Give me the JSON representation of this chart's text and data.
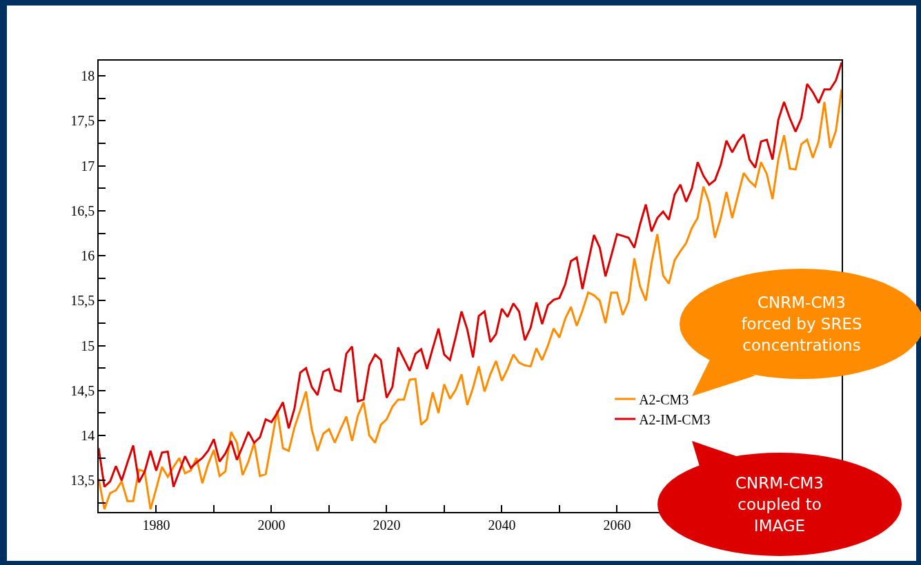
{
  "chart_data": {
    "type": "line",
    "x": [
      1970,
      1971,
      1972,
      1973,
      1974,
      1975,
      1976,
      1977,
      1978,
      1979,
      1980,
      1981,
      1982,
      1983,
      1984,
      1985,
      1986,
      1987,
      1988,
      1989,
      1990,
      1991,
      1992,
      1993,
      1994,
      1995,
      1996,
      1997,
      1998,
      1999,
      2000,
      2001,
      2002,
      2003,
      2004,
      2005,
      2006,
      2007,
      2008,
      2009,
      2010,
      2011,
      2012,
      2013,
      2014,
      2015,
      2016,
      2017,
      2018,
      2019,
      2020,
      2021,
      2022,
      2023,
      2024,
      2025,
      2026,
      2027,
      2028,
      2029,
      2030,
      2031,
      2032,
      2033,
      2034,
      2035,
      2036,
      2037,
      2038,
      2039,
      2040,
      2041,
      2042,
      2043,
      2044,
      2045,
      2046,
      2047,
      2048,
      2049,
      2050,
      2051,
      2052,
      2053,
      2054,
      2055,
      2056,
      2057,
      2058,
      2059,
      2060,
      2061,
      2062,
      2063,
      2064,
      2065,
      2066,
      2067,
      2068,
      2069,
      2070,
      2071,
      2072,
      2073,
      2074,
      2075,
      2076,
      2077,
      2078,
      2079,
      2080,
      2081,
      2082,
      2083,
      2084,
      2085,
      2086,
      2087,
      2088,
      2089,
      2090,
      2091,
      2092,
      2093,
      2094,
      2095,
      2096,
      2097,
      2098,
      2099
    ],
    "series": [
      {
        "name": "A2-CM3",
        "color": "#ff8c00",
        "values": [
          13.52,
          13.18,
          13.36,
          13.39,
          13.49,
          13.27,
          13.27,
          13.62,
          13.6,
          13.18,
          13.41,
          13.65,
          13.54,
          13.65,
          13.75,
          13.58,
          13.61,
          13.75,
          13.47,
          13.68,
          13.84,
          13.55,
          13.6,
          14.04,
          13.92,
          13.56,
          13.71,
          13.92,
          13.55,
          13.57,
          13.92,
          14.28,
          13.86,
          13.83,
          14.09,
          14.28,
          14.49,
          14.07,
          13.83,
          14.02,
          14.07,
          13.92,
          14.07,
          14.21,
          13.94,
          14.22,
          14.37,
          14.0,
          13.92,
          14.12,
          14.18,
          14.32,
          14.4,
          14.4,
          14.62,
          14.63,
          14.12,
          14.18,
          14.48,
          14.25,
          14.57,
          14.41,
          14.51,
          14.68,
          14.34,
          14.53,
          14.77,
          14.49,
          14.68,
          14.83,
          14.61,
          14.74,
          14.9,
          14.81,
          14.78,
          14.77,
          14.97,
          14.84,
          15.0,
          15.19,
          15.09,
          15.3,
          15.43,
          15.22,
          15.39,
          15.59,
          15.56,
          15.5,
          15.25,
          15.59,
          15.59,
          15.34,
          15.49,
          15.97,
          15.66,
          15.5,
          15.92,
          16.24,
          15.78,
          15.69,
          15.95,
          16.05,
          16.14,
          16.31,
          16.42,
          16.77,
          16.59,
          16.2,
          16.42,
          16.71,
          16.42,
          16.67,
          16.92,
          16.83,
          16.77,
          17.04,
          16.91,
          16.63,
          17.07,
          17.34,
          16.97,
          16.96,
          17.24,
          17.29,
          17.09,
          17.27,
          17.71,
          17.2,
          17.39,
          17.85
        ]
      },
      {
        "name": "A2-IM-CM3",
        "color": "#dd0000",
        "values": [
          13.86,
          13.43,
          13.49,
          13.66,
          13.5,
          13.7,
          13.89,
          13.48,
          13.6,
          13.83,
          13.61,
          13.81,
          13.82,
          13.43,
          13.6,
          13.77,
          13.64,
          13.7,
          13.75,
          13.83,
          13.96,
          13.71,
          13.8,
          13.94,
          13.73,
          13.88,
          14.04,
          13.92,
          13.98,
          14.18,
          14.15,
          14.25,
          14.37,
          14.08,
          14.3,
          14.7,
          14.75,
          14.54,
          14.45,
          14.71,
          14.74,
          14.51,
          14.49,
          14.91,
          14.99,
          14.38,
          14.4,
          14.78,
          14.9,
          14.84,
          14.42,
          14.54,
          14.98,
          14.85,
          14.72,
          14.91,
          14.96,
          14.74,
          14.97,
          15.19,
          14.9,
          14.84,
          15.1,
          15.38,
          15.18,
          14.87,
          15.33,
          15.38,
          15.04,
          15.13,
          15.41,
          15.32,
          15.47,
          15.38,
          15.06,
          15.2,
          15.48,
          15.24,
          15.45,
          15.51,
          15.53,
          15.68,
          15.94,
          15.98,
          15.63,
          15.93,
          16.23,
          16.09,
          15.77,
          16.0,
          16.24,
          16.22,
          16.2,
          16.09,
          16.35,
          16.57,
          16.27,
          16.42,
          16.49,
          16.4,
          16.68,
          16.79,
          16.6,
          16.75,
          17.04,
          16.89,
          16.79,
          16.84,
          17.01,
          17.28,
          17.15,
          17.27,
          17.35,
          17.07,
          16.98,
          17.27,
          17.29,
          17.07,
          17.51,
          17.71,
          17.53,
          17.38,
          17.53,
          17.91,
          17.82,
          17.7,
          17.85,
          17.85,
          17.95,
          18.15
        ]
      }
    ],
    "xlim": [
      1970,
      2099
    ],
    "xticks": [
      {
        "value": 1970,
        "label": null
      },
      1980,
      {
        "value": 1990,
        "label": null
      },
      2000,
      {
        "value": 2010,
        "label": null
      },
      2020,
      {
        "value": 2030,
        "label": null
      },
      2040,
      {
        "value": 2050,
        "label": null
      },
      2060,
      {
        "value": 2070,
        "label": null
      },
      {
        "value": 2080,
        "label": null
      },
      {
        "value": 2090,
        "label": null
      }
    ],
    "ylim": [
      13.15,
      18.17
    ],
    "yticks": [
      {
        "value": 13.25,
        "label": null
      },
      {
        "value": 13.5,
        "label": "13,5"
      },
      {
        "value": 13.75,
        "label": null
      },
      14,
      {
        "value": 14.25,
        "label": null
      },
      {
        "value": 14.5,
        "label": "14,5"
      },
      {
        "value": 14.75,
        "label": null
      },
      15,
      {
        "value": 15.25,
        "label": null
      },
      {
        "value": 15.5,
        "label": "15,5"
      },
      {
        "value": 15.75,
        "label": null
      },
      16,
      {
        "value": 16.25,
        "label": null
      },
      {
        "value": 16.5,
        "label": "16,5"
      },
      {
        "value": 16.75,
        "label": null
      },
      17,
      {
        "value": 17.25,
        "label": null
      },
      {
        "value": 17.5,
        "label": "17,5"
      },
      {
        "value": 17.75,
        "label": null
      },
      18
    ],
    "grid": false,
    "legend": "bottom right",
    "marker": "none",
    "line_style": "solid",
    "annotations": [
      "CNRM-CM3\nforced by SRES\nconcentrations",
      "CNRM-CM3\ncoupled to\nIMAGE"
    ]
  }
}
